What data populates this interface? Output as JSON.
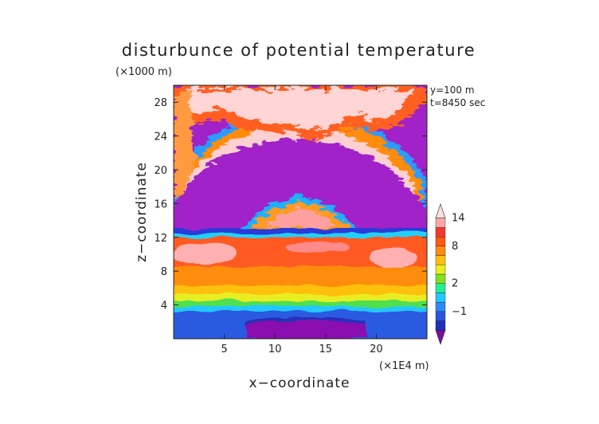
{
  "chart_data": {
    "type": "heatmap",
    "title": "disturbunce of potential temperature",
    "xlabel": "x−coordinate",
    "ylabel": "z−coordinate",
    "x_unit": "(×1E4 m)",
    "y_unit": "(×1000 m)",
    "annotations": [
      "y=100 m",
      "t=8450 sec"
    ],
    "xlim": [
      0,
      25
    ],
    "ylim": [
      0,
      30
    ],
    "x_ticks": [
      5,
      10,
      15,
      20
    ],
    "y_ticks": [
      4,
      8,
      12,
      16,
      20,
      24,
      28
    ],
    "grid": false,
    "colorbar": {
      "position": "right",
      "tick_labels": [
        "−1",
        "2",
        "8",
        "14"
      ],
      "tick_values": [
        -1,
        2,
        8,
        14
      ],
      "levels": [
        -3,
        -2,
        -1,
        0,
        1,
        2,
        3,
        4,
        6,
        8,
        10,
        12,
        14,
        16
      ],
      "colors": [
        "#7a0fa0",
        "#2030b8",
        "#2a55e0",
        "#2f88ff",
        "#22c8ff",
        "#22ee90",
        "#80e020",
        "#e8ee20",
        "#ffc010",
        "#ff8c10",
        "#ff5a10",
        "#f03a30",
        "#ffa5a5",
        "#ffe0e0"
      ]
    },
    "regions": [
      {
        "name": "upper background",
        "value": -3,
        "z_range": [
          13,
          30
        ]
      },
      {
        "name": "upper arc of warm anomalies",
        "value": 12,
        "z_range": [
          16,
          29
        ]
      },
      {
        "name": "central warm bulge",
        "value": 10,
        "x_range": [
          7,
          18
        ],
        "z_range": [
          12,
          16
        ]
      },
      {
        "name": "tropopause stripe",
        "value": 0,
        "z_range": [
          11,
          12.5
        ]
      },
      {
        "name": "warm layer",
        "value": 8,
        "z_range": [
          3,
          11
        ]
      },
      {
        "name": "pink patches",
        "value": 14,
        "z_range": [
          7.5,
          11
        ]
      },
      {
        "name": "cool near-surface layer",
        "value": -1,
        "z_range": [
          0,
          3
        ]
      },
      {
        "name": "cold surface pool",
        "value": -3,
        "x_range": [
          7,
          18.5
        ],
        "z_range": [
          0,
          2
        ]
      }
    ]
  }
}
